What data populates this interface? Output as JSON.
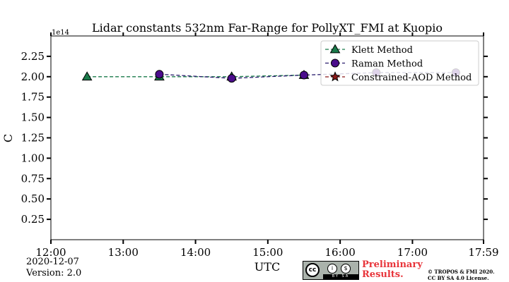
{
  "chart_data": {
    "type": "line",
    "title": "Lidar constants 532nm Far-Range for PollyXT_FMI at Kuopio",
    "xlabel": "UTC",
    "ylabel": "C",
    "y_scale_label": "1e14",
    "xlim": [
      0,
      359
    ],
    "ylim": [
      0,
      2.5
    ],
    "x_ticks": [
      0,
      60,
      120,
      180,
      240,
      300,
      359
    ],
    "x_tick_labels": [
      "12:00",
      "13:00",
      "14:00",
      "15:00",
      "16:00",
      "17:00",
      "17:59"
    ],
    "y_ticks": [
      0.25,
      0.5,
      0.75,
      1.0,
      1.25,
      1.5,
      1.75,
      2.0,
      2.25
    ],
    "y_tick_labels": [
      "0.25",
      "0.50",
      "0.75",
      "1.00",
      "1.25",
      "1.50",
      "1.75",
      "2.00",
      "2.25"
    ],
    "legend_position": "top-right",
    "series": [
      {
        "name": "Klett Method",
        "marker": "triangle",
        "color": "#1a7a4a",
        "line_color": "#1a7a4a",
        "x": [
          30,
          90,
          150,
          210
        ],
        "values": [
          2.0,
          2.0,
          2.0,
          2.02
        ]
      },
      {
        "name": "Raman Method",
        "marker": "circle",
        "color": "#4b0d8c",
        "line_color": "#2a1d6e",
        "x": [
          90,
          150,
          210,
          270,
          336
        ],
        "values": [
          2.03,
          1.98,
          2.02,
          2.05,
          2.05
        ]
      },
      {
        "name": "Constrained-AOD Method",
        "marker": "star",
        "color": "#8c1a1a",
        "line_color": "#8c1a1a",
        "x": [],
        "values": []
      }
    ]
  },
  "footer": {
    "date": "2020-12-07",
    "version": "Version: 2.0",
    "license_badge_icon": "cc",
    "license_badge_small1": "i",
    "license_badge_small2": "$",
    "license_badge_bar": "BY SA",
    "preliminary_line1": "Preliminary",
    "preliminary_line2": "Results.",
    "copyright_line1": "© TROPOS & FMI 2020.",
    "copyright_line2": "CC BY SA 4.0 License."
  }
}
